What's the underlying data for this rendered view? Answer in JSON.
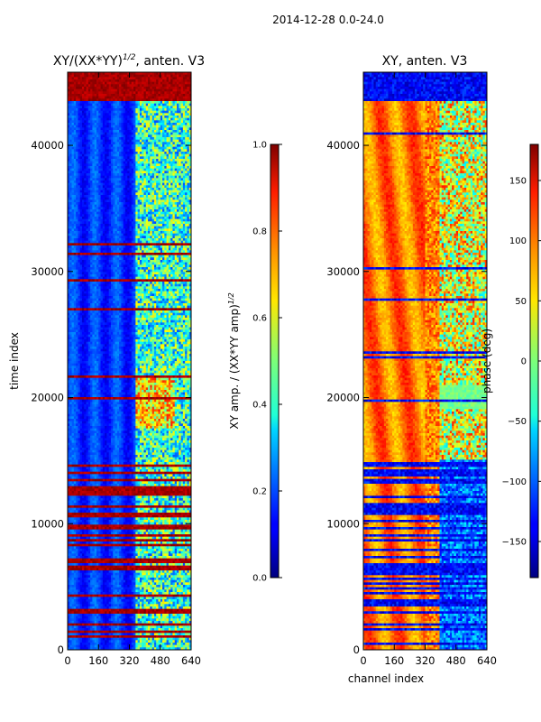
{
  "figure_title": "2014-12-28 0.0-24.0",
  "chart_data": [
    {
      "type": "heatmap",
      "title_prefix": "XY/(XX*YY)",
      "title_exponent": "1/2",
      "title_suffix": ", anten. V3",
      "xlabel": "",
      "ylabel": "time index",
      "xlim": [
        0,
        640
      ],
      "ylim": [
        0,
        45800
      ],
      "xticks": [
        "0",
        "160",
        "320",
        "480",
        "640"
      ],
      "yticks": [
        "0",
        "10000",
        "20000",
        "30000",
        "40000"
      ],
      "colorbar": {
        "label_main": "XY amp. / (XX*YY amp)",
        "label_exponent": "1/2",
        "range": [
          0.0,
          1.0
        ],
        "ticks": [
          "0.0",
          "0.2",
          "0.4",
          "0.6",
          "0.8",
          "1.0"
        ],
        "colormap": "jet"
      }
    },
    {
      "type": "heatmap",
      "title": "XY, anten. V3",
      "xlabel": "channel index",
      "ylabel": "",
      "xlim": [
        0,
        640
      ],
      "ylim": [
        0,
        45800
      ],
      "xticks": [
        "0",
        "160",
        "320",
        "480",
        "640"
      ],
      "yticks": [
        "0",
        "10000",
        "20000",
        "30000",
        "40000"
      ],
      "colorbar": {
        "label": "phase (deg)",
        "range": [
          -180,
          180
        ],
        "ticks": [
          "−150",
          "−100",
          "−50",
          "0",
          "50",
          "100",
          "150"
        ],
        "colormap": "jet"
      }
    }
  ]
}
